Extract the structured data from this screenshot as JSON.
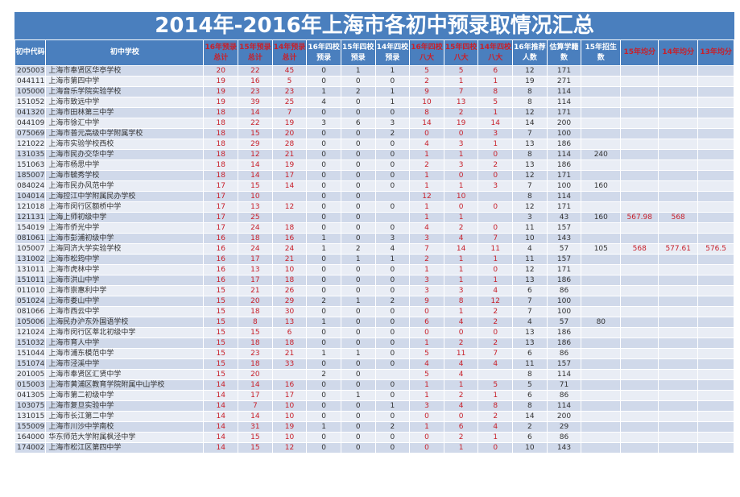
{
  "title": "2014年-2016年上海市各初中预录取情况汇总",
  "columns": [
    {
      "label": "初中代码",
      "red": false
    },
    {
      "label": "初中学校",
      "red": false
    },
    {
      "label": "16年预录总计",
      "red": true
    },
    {
      "label": "15年预录总计",
      "red": true
    },
    {
      "label": "14年预录总计",
      "red": true
    },
    {
      "label": "16年四校预录",
      "red": false
    },
    {
      "label": "15年四校预录",
      "red": false
    },
    {
      "label": "14年四校预录",
      "red": false
    },
    {
      "label": "16年四校八大",
      "red": true
    },
    {
      "label": "15年四校八大",
      "red": true
    },
    {
      "label": "14年四校八大",
      "red": true
    },
    {
      "label": "16年推荐人数",
      "red": false
    },
    {
      "label": "估算学籍数",
      "red": false
    },
    {
      "label": "15年招生数",
      "red": false
    },
    {
      "label": "15年均分",
      "red": true
    },
    {
      "label": "14年均分",
      "red": true
    },
    {
      "label": "13年均分",
      "red": true
    }
  ],
  "rows": [
    [
      "205003",
      "上海市奉贤区华亭学校",
      "20",
      "22",
      "45",
      "0",
      "1",
      "1",
      "5",
      "5",
      "6",
      "12",
      "171",
      "",
      "",
      "",
      ""
    ],
    [
      "044111",
      "上海市第四中学",
      "19",
      "16",
      "5",
      "0",
      "0",
      "0",
      "2",
      "1",
      "1",
      "19",
      "271",
      "",
      "",
      "",
      ""
    ],
    [
      "105000",
      "上海音乐学院实验学校",
      "19",
      "23",
      "23",
      "1",
      "2",
      "1",
      "9",
      "7",
      "8",
      "8",
      "114",
      "",
      "",
      "",
      ""
    ],
    [
      "151052",
      "上海市致远中学",
      "19",
      "39",
      "25",
      "4",
      "0",
      "1",
      "10",
      "13",
      "5",
      "8",
      "114",
      "",
      "",
      "",
      ""
    ],
    [
      "041320",
      "上海市田林第三中学",
      "18",
      "14",
      "7",
      "0",
      "0",
      "0",
      "8",
      "2",
      "1",
      "12",
      "171",
      "",
      "",
      "",
      ""
    ],
    [
      "044109",
      "上海市徐汇中学",
      "18",
      "22",
      "19",
      "3",
      "6",
      "3",
      "14",
      "19",
      "14",
      "14",
      "200",
      "",
      "",
      "",
      ""
    ],
    [
      "075069",
      "上海市普元高级中学附属学校",
      "18",
      "15",
      "20",
      "0",
      "0",
      "2",
      "0",
      "0",
      "3",
      "7",
      "100",
      "",
      "",
      "",
      ""
    ],
    [
      "121022",
      "上海市实验学校西校",
      "18",
      "29",
      "28",
      "0",
      "0",
      "0",
      "4",
      "3",
      "1",
      "13",
      "186",
      "",
      "",
      "",
      ""
    ],
    [
      "131035",
      "上海市民办交华中学",
      "18",
      "12",
      "21",
      "0",
      "0",
      "0",
      "1",
      "1",
      "0",
      "8",
      "114",
      "240",
      "",
      "",
      ""
    ],
    [
      "151063",
      "上海市杨思中学",
      "18",
      "14",
      "19",
      "0",
      "0",
      "0",
      "2",
      "3",
      "2",
      "13",
      "186",
      "",
      "",
      "",
      ""
    ],
    [
      "185007",
      "上海市毓秀学校",
      "18",
      "14",
      "17",
      "0",
      "0",
      "0",
      "1",
      "0",
      "0",
      "12",
      "171",
      "",
      "",
      "",
      ""
    ],
    [
      "084024",
      "上海市民办风范中学",
      "17",
      "15",
      "14",
      "0",
      "0",
      "0",
      "1",
      "1",
      "3",
      "7",
      "100",
      "160",
      "",
      "",
      ""
    ],
    [
      "104014",
      "上海控江中学附属民办学校",
      "17",
      "10",
      "",
      "0",
      "0",
      "",
      "12",
      "10",
      "",
      "8",
      "114",
      "",
      "",
      "",
      ""
    ],
    [
      "121018",
      "上海市闵行区额桥中学",
      "17",
      "13",
      "12",
      "0",
      "0",
      "0",
      "1",
      "0",
      "0",
      "12",
      "171",
      "",
      "",
      "",
      ""
    ],
    [
      "121131",
      "上海上师初级中学",
      "17",
      "25",
      "",
      "0",
      "0",
      "",
      "1",
      "1",
      "",
      "3",
      "43",
      "160",
      "567.98",
      "568",
      ""
    ],
    [
      "154019",
      "上海市侨光中学",
      "17",
      "24",
      "18",
      "0",
      "0",
      "0",
      "4",
      "2",
      "0",
      "11",
      "157",
      "",
      "",
      "",
      ""
    ],
    [
      "081061",
      "上海市彭浦初级中学",
      "16",
      "18",
      "16",
      "1",
      "0",
      "3",
      "3",
      "4",
      "7",
      "10",
      "143",
      "",
      "",
      "",
      ""
    ],
    [
      "105007",
      "上海同济大学实验学校",
      "16",
      "24",
      "24",
      "1",
      "2",
      "4",
      "7",
      "14",
      "11",
      "4",
      "57",
      "105",
      "568",
      "577.61",
      "576.5"
    ],
    [
      "131002",
      "上海市松筠中学",
      "16",
      "17",
      "21",
      "0",
      "1",
      "1",
      "2",
      "1",
      "1",
      "11",
      "157",
      "",
      "",
      "",
      ""
    ],
    [
      "131011",
      "上海市虎林中学",
      "16",
      "13",
      "10",
      "0",
      "0",
      "0",
      "1",
      "1",
      "0",
      "12",
      "171",
      "",
      "",
      "",
      ""
    ],
    [
      "151011",
      "上海市洪山中学",
      "16",
      "17",
      "18",
      "0",
      "0",
      "0",
      "3",
      "1",
      "1",
      "13",
      "186",
      "",
      "",
      "",
      ""
    ],
    [
      "011010",
      "上海市崇惠利中学",
      "15",
      "21",
      "26",
      "0",
      "0",
      "0",
      "3",
      "3",
      "4",
      "6",
      "86",
      "",
      "",
      "",
      ""
    ],
    [
      "051024",
      "上海市娄山中学",
      "15",
      "20",
      "29",
      "2",
      "1",
      "2",
      "9",
      "8",
      "12",
      "7",
      "100",
      "",
      "",
      "",
      ""
    ],
    [
      "081066",
      "上海市西云中学",
      "15",
      "18",
      "30",
      "0",
      "0",
      "0",
      "0",
      "1",
      "2",
      "7",
      "100",
      "",
      "",
      "",
      ""
    ],
    [
      "105006",
      "上海民办沪东外国语学校",
      "15",
      "8",
      "13",
      "1",
      "0",
      "0",
      "6",
      "4",
      "2",
      "4",
      "57",
      "80",
      "",
      "",
      ""
    ],
    [
      "121024",
      "上海市闵行区莘北初级中学",
      "15",
      "15",
      "6",
      "0",
      "0",
      "0",
      "0",
      "0",
      "0",
      "13",
      "186",
      "",
      "",
      "",
      ""
    ],
    [
      "151032",
      "上海市育人中学",
      "15",
      "18",
      "18",
      "0",
      "0",
      "0",
      "1",
      "2",
      "2",
      "13",
      "186",
      "",
      "",
      "",
      ""
    ],
    [
      "151044",
      "上海市浦东模范中学",
      "15",
      "23",
      "21",
      "1",
      "1",
      "0",
      "5",
      "11",
      "7",
      "6",
      "86",
      "",
      "",
      "",
      ""
    ],
    [
      "151074",
      "上海市泾溪中学",
      "15",
      "18",
      "33",
      "0",
      "0",
      "0",
      "4",
      "4",
      "4",
      "11",
      "157",
      "",
      "",
      "",
      ""
    ],
    [
      "201005",
      "上海市奉贤区汇贤中学",
      "15",
      "20",
      "",
      "2",
      "0",
      "",
      "5",
      "4",
      "",
      "8",
      "114",
      "",
      "",
      "",
      ""
    ],
    [
      "015003",
      "上海市黄浦区教育学院附属中山学校",
      "14",
      "14",
      "16",
      "0",
      "0",
      "0",
      "1",
      "1",
      "5",
      "5",
      "71",
      "",
      "",
      "",
      ""
    ],
    [
      "041305",
      "上海市第二初级中学",
      "14",
      "17",
      "17",
      "0",
      "1",
      "0",
      "1",
      "2",
      "1",
      "6",
      "86",
      "",
      "",
      "",
      ""
    ],
    [
      "103075",
      "上海市复旦实验中学",
      "14",
      "7",
      "10",
      "0",
      "0",
      "1",
      "3",
      "4",
      "8",
      "8",
      "114",
      "",
      "",
      "",
      ""
    ],
    [
      "131015",
      "上海市长江第二中学",
      "14",
      "14",
      "10",
      "0",
      "0",
      "0",
      "0",
      "0",
      "2",
      "14",
      "200",
      "",
      "",
      "",
      ""
    ],
    [
      "155009",
      "上海市川沙中学南校",
      "14",
      "31",
      "19",
      "1",
      "0",
      "2",
      "1",
      "6",
      "4",
      "2",
      "29",
      "",
      "",
      "",
      ""
    ],
    [
      "164000",
      "华东师范大学附属枫泾中学",
      "14",
      "15",
      "10",
      "0",
      "0",
      "0",
      "0",
      "2",
      "1",
      "6",
      "86",
      "",
      "",
      "",
      ""
    ],
    [
      "174002",
      "上海市松江区第四中学",
      "14",
      "15",
      "12",
      "0",
      "0",
      "0",
      "0",
      "1",
      "0",
      "10",
      "143",
      "",
      "",
      "",
      ""
    ]
  ]
}
